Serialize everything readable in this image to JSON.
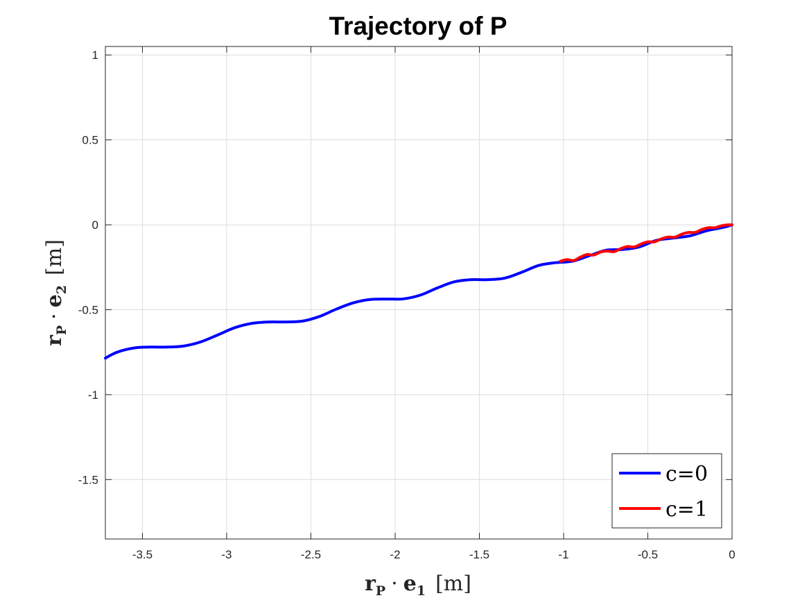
{
  "chart_data": {
    "type": "line",
    "title": "Trajectory of P",
    "xlabel": {
      "vec": "r",
      "sub": "P",
      "dot": "·",
      "basis": "e",
      "basis_sub": "1",
      "unit": "[m]"
    },
    "ylabel": {
      "vec": "r",
      "sub": "P",
      "dot": "·",
      "basis": "e",
      "basis_sub": "2",
      "unit": "[m]"
    },
    "xlim": [
      -3.72,
      0
    ],
    "ylim": [
      -1.85,
      1.05
    ],
    "xticks": [
      -3.5,
      -3,
      -2.5,
      -2,
      -1.5,
      -1,
      -0.5,
      0
    ],
    "xtick_labels": [
      "-3.5",
      "-3",
      "-2.5",
      "-2",
      "-1.5",
      "-1",
      "-0.5",
      "0"
    ],
    "yticks": [
      1,
      0.5,
      0,
      -0.5,
      -1,
      -1.5
    ],
    "ytick_labels": [
      "1",
      "0.5",
      "0",
      "-0.5",
      "-1",
      "-1.5"
    ],
    "grid": true,
    "legend_position": "bottom-right",
    "series": [
      {
        "name": "c=0",
        "color": "#0000ff",
        "x": [
          -3.72,
          -3.65,
          -3.55,
          -3.45,
          -3.35,
          -3.25,
          -3.15,
          -3.05,
          -2.95,
          -2.85,
          -2.75,
          -2.65,
          -2.55,
          -2.45,
          -2.35,
          -2.25,
          -2.15,
          -2.05,
          -1.95,
          -1.85,
          -1.75,
          -1.65,
          -1.55,
          -1.45,
          -1.35,
          -1.25,
          -1.15,
          -1.05,
          -0.95,
          -0.85,
          -0.75,
          -0.65,
          -0.55,
          -0.45,
          -0.35,
          -0.25,
          -0.15,
          -0.05,
          0
        ],
        "y": [
          -0.785,
          -0.75,
          -0.725,
          -0.72,
          -0.72,
          -0.713,
          -0.688,
          -0.647,
          -0.605,
          -0.58,
          -0.572,
          -0.572,
          -0.567,
          -0.54,
          -0.497,
          -0.46,
          -0.44,
          -0.437,
          -0.436,
          -0.414,
          -0.372,
          -0.336,
          -0.323,
          -0.323,
          -0.314,
          -0.28,
          -0.24,
          -0.223,
          -0.215,
          -0.183,
          -0.15,
          -0.145,
          -0.13,
          -0.092,
          -0.078,
          -0.065,
          -0.035,
          -0.015,
          0
        ]
      },
      {
        "name": "c=1",
        "color": "#ff0000",
        "x": [
          -1.02,
          -0.98,
          -0.94,
          -0.9,
          -0.86,
          -0.82,
          -0.78,
          -0.74,
          -0.7,
          -0.66,
          -0.62,
          -0.58,
          -0.54,
          -0.5,
          -0.46,
          -0.42,
          -0.38,
          -0.34,
          -0.3,
          -0.26,
          -0.22,
          -0.18,
          -0.14,
          -0.1,
          -0.06,
          -0.02,
          0
        ],
        "y": [
          -0.215,
          -0.205,
          -0.21,
          -0.19,
          -0.175,
          -0.178,
          -0.16,
          -0.155,
          -0.158,
          -0.14,
          -0.128,
          -0.13,
          -0.113,
          -0.1,
          -0.1,
          -0.083,
          -0.072,
          -0.073,
          -0.056,
          -0.045,
          -0.045,
          -0.028,
          -0.017,
          -0.017,
          -0.005,
          0.0,
          0
        ]
      }
    ]
  }
}
